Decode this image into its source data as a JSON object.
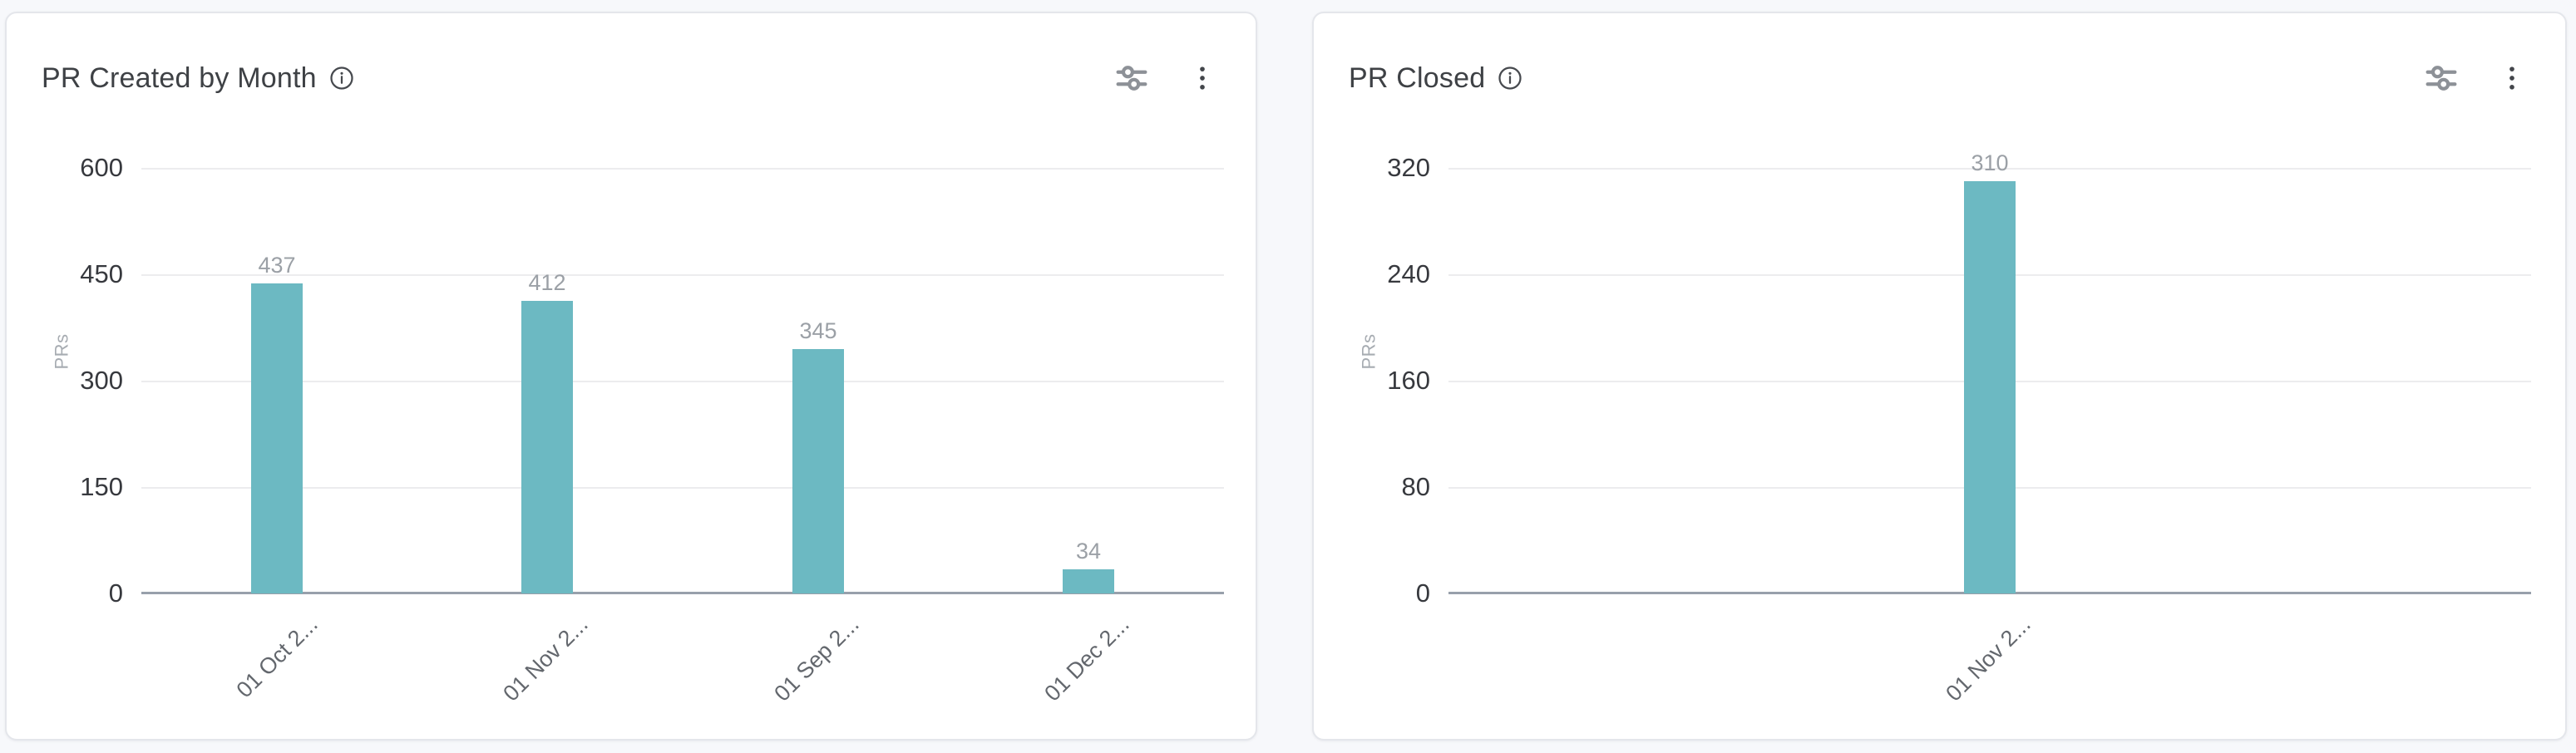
{
  "page": {
    "background_color": "#f7f8fb"
  },
  "cards": [
    {
      "title": "PR Created by Month",
      "icons": [
        "info-icon",
        "sliders-icon",
        "kebab-menu-icon"
      ]
    },
    {
      "title": "PR Closed",
      "icons": [
        "info-icon",
        "sliders-icon",
        "kebab-menu-icon"
      ]
    }
  ],
  "chart_data": [
    {
      "type": "bar",
      "title": "PR Created by Month",
      "categories": [
        "01 Oct 2...",
        "01 Nov 2...",
        "01 Sep 2...",
        "01 Dec 2..."
      ],
      "values": [
        437,
        412,
        345,
        34
      ],
      "data_labels": [
        "437",
        "412",
        "345",
        "34"
      ],
      "xlabel": "",
      "ylabel": "PRs",
      "ylim": [
        0,
        600
      ],
      "yticks": [
        0,
        150,
        300,
        450,
        600
      ],
      "grid": true,
      "legend": false,
      "bar_color": "#6cb9c2"
    },
    {
      "type": "bar",
      "title": "PR Closed",
      "categories": [
        "01 Nov 2..."
      ],
      "values": [
        310
      ],
      "data_labels": [
        "310"
      ],
      "xlabel": "",
      "ylabel": "PRs",
      "ylim": [
        0,
        320
      ],
      "yticks": [
        0,
        80,
        160,
        240,
        320
      ],
      "grid": true,
      "legend": false,
      "bar_color": "#6cb9c2"
    }
  ]
}
